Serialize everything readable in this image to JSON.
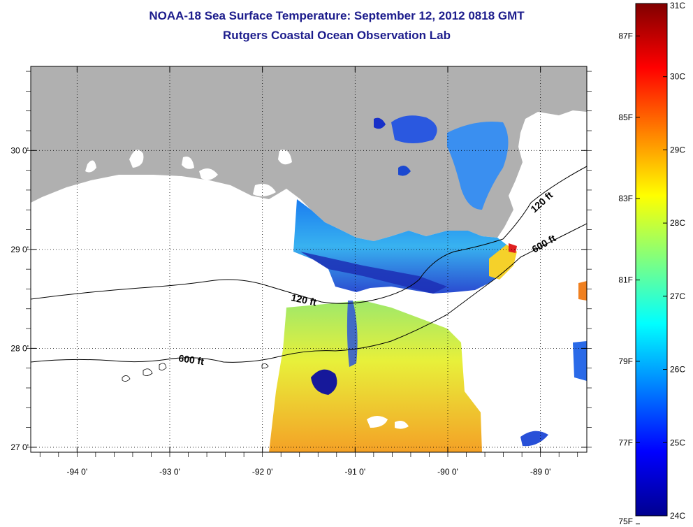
{
  "title": "NOAA-18 Sea Surface Temperature:  September 12, 2012 0818 GMT",
  "subtitle": "Rutgers Coastal Ocean Observation Lab",
  "map": {
    "lon_range": [
      -94.5,
      -88.5
    ],
    "lat_range": [
      26.95,
      30.85
    ],
    "lon_ticks": [
      {
        "value": -94,
        "label": "-94 0'"
      },
      {
        "value": -93,
        "label": "-93 0'"
      },
      {
        "value": -92,
        "label": "-92 0'"
      },
      {
        "value": -91,
        "label": "-91 0'"
      },
      {
        "value": -90,
        "label": "-90 0'"
      },
      {
        "value": -89,
        "label": "-89 0'"
      }
    ],
    "lat_ticks": [
      {
        "value": 30,
        "label": "30 0'"
      },
      {
        "value": 29,
        "label": "29 0'"
      },
      {
        "value": 28,
        "label": "28 0'"
      },
      {
        "value": 27,
        "label": "27 0'"
      }
    ],
    "contour_labels": [
      {
        "text": "120 ft",
        "contour": "shelf-120ft"
      },
      {
        "text": "120 ft",
        "contour": "shelf-120ft-east"
      },
      {
        "text": "600 ft",
        "contour": "slope-600ft"
      },
      {
        "text": "600 ft",
        "contour": "slope-600ft-east"
      }
    ],
    "land_color": "#b0b0b0",
    "no_data_color": "#ffffff",
    "grid": "dotted"
  },
  "colorbar": {
    "min_c": 24,
    "max_c": 31,
    "celsius_labels": [
      "31C",
      "30C",
      "29C",
      "28C",
      "27C",
      "26C",
      "25C",
      "24C"
    ],
    "fahrenheit_labels": [
      {
        "value": 87,
        "label": "87F"
      },
      {
        "value": 85,
        "label": "85F"
      },
      {
        "value": 83,
        "label": "83F"
      },
      {
        "value": 81,
        "label": "81F"
      },
      {
        "value": 79,
        "label": "79F"
      },
      {
        "value": 77,
        "label": "77F"
      },
      {
        "value": 75,
        "label": "75F"
      }
    ],
    "colormap": "jet"
  }
}
